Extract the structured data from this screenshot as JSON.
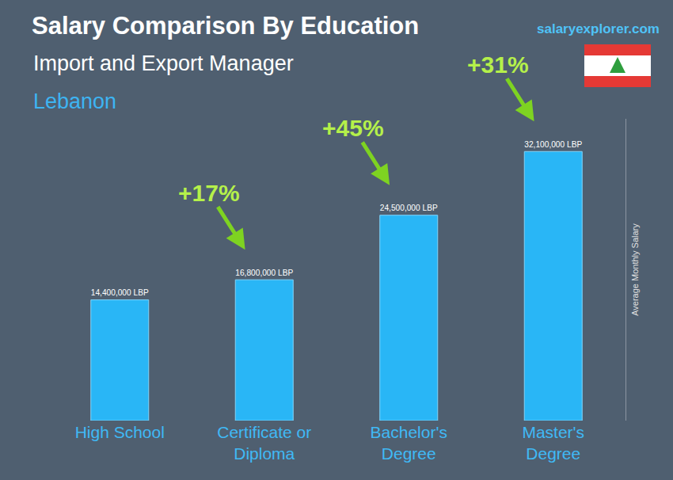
{
  "chart_data": {
    "type": "bar",
    "title": "Salary Comparison By Education",
    "subtitle": "Import and Export Manager",
    "location": "Lebanon",
    "source": "salaryexplorer.com",
    "ylabel": "Average Monthly Salary",
    "categories": [
      "High School",
      "Certificate or Diploma",
      "Bachelor's Degree",
      "Master's Degree"
    ],
    "values": [
      14400000,
      16800000,
      24500000,
      32100000
    ],
    "value_labels": [
      "14,400,000 LBP",
      "16,800,000 LBP",
      "24,500,000 LBP",
      "32,100,000 LBP"
    ],
    "data_labels": true,
    "annotations": [
      "+17%",
      "+45%",
      "+31%"
    ],
    "color": "#29b6f6",
    "ylim": [
      0,
      36000000
    ],
    "tick_labels": "x",
    "grid": false
  }
}
